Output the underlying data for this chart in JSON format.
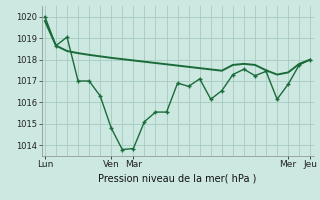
{
  "background_color": "#cce8e0",
  "line_color": "#1a6b3a",
  "grid_color": "#aacfc5",
  "title": "Pression niveau de la mer( hPa )",
  "ylim": [
    1013.5,
    1020.5
  ],
  "yticks": [
    1014,
    1015,
    1016,
    1017,
    1018,
    1019,
    1020
  ],
  "smooth_x": [
    0,
    1,
    2,
    3,
    4,
    5,
    6,
    7,
    8,
    9,
    10,
    11,
    12,
    13,
    14,
    15,
    16,
    17,
    18,
    19,
    20,
    21,
    22,
    23,
    24
  ],
  "smooth_y": [
    1019.8,
    1018.65,
    1018.4,
    1018.3,
    1018.22,
    1018.15,
    1018.08,
    1018.02,
    1017.96,
    1017.9,
    1017.84,
    1017.78,
    1017.72,
    1017.66,
    1017.6,
    1017.54,
    1017.48,
    1017.75,
    1017.8,
    1017.75,
    1017.5,
    1017.3,
    1017.4,
    1017.8,
    1018.0
  ],
  "jagged_x": [
    0,
    1,
    2,
    3,
    4,
    5,
    6,
    7,
    8,
    9,
    10,
    11,
    12,
    13,
    14,
    15,
    16,
    17,
    18,
    19,
    20,
    21,
    22,
    23,
    24
  ],
  "jagged_y": [
    1020.0,
    1018.65,
    1019.05,
    1017.0,
    1017.0,
    1016.3,
    1014.8,
    1013.8,
    1013.85,
    1015.1,
    1015.55,
    1015.55,
    1016.9,
    1016.75,
    1017.1,
    1016.15,
    1016.55,
    1017.3,
    1017.55,
    1017.25,
    1017.45,
    1016.15,
    1016.85,
    1017.75,
    1018.0
  ],
  "xtick_positions": [
    0,
    6,
    8,
    22,
    24
  ],
  "xtick_labels": [
    "Lun",
    "Ven",
    "Mar",
    "Mer",
    "Jeu"
  ]
}
